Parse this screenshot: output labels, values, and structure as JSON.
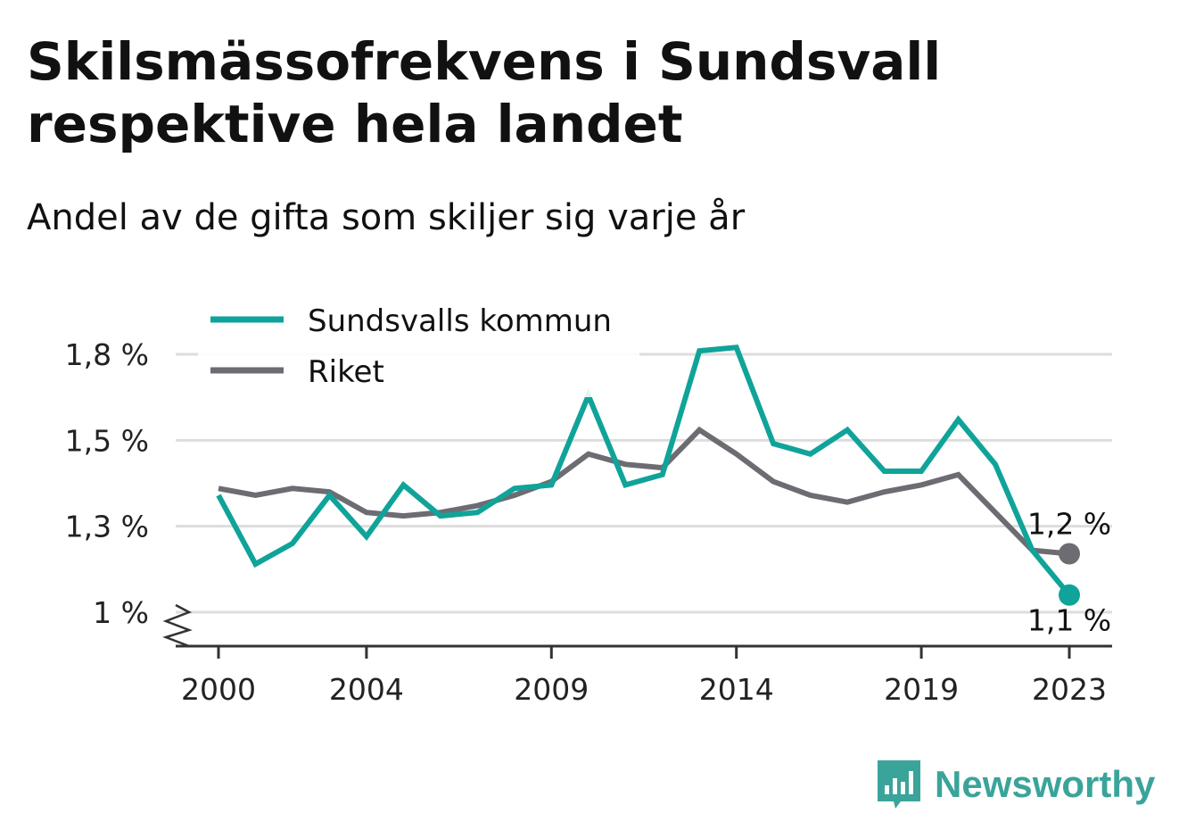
{
  "title": "Skilsmässofrekvens i Sundsvall respektive hela landet",
  "subtitle": "Andel av de gifta som skiljer sig varje år",
  "brand": {
    "name": "Newsworthy",
    "logo_icon": "newsworthy-bar-chart-icon"
  },
  "colors": {
    "sundsvall": "#0fa39a",
    "riket": "#6e6c73",
    "grid": "#dddddd",
    "axis": "#333333"
  },
  "chart_data": {
    "type": "line",
    "title": "Skilsmässofrekvens i Sundsvall respektive hela landet",
    "subtitle": "Andel av de gifta som skiljer sig varje år",
    "xlabel": "",
    "ylabel": "",
    "x": [
      2000,
      2001,
      2002,
      2003,
      2004,
      2005,
      2006,
      2007,
      2008,
      2009,
      2010,
      2011,
      2012,
      2013,
      2014,
      2015,
      2016,
      2017,
      2018,
      2019,
      2020,
      2021,
      2022,
      2023
    ],
    "x_ticks": [
      2000,
      2004,
      2009,
      2014,
      2019,
      2023
    ],
    "x_tick_labels": [
      "2000",
      "2004",
      "2009",
      "2014",
      "2019",
      "2023"
    ],
    "y_ticks": [
      1.0,
      1.25,
      1.5,
      1.75
    ],
    "y_tick_labels": [
      "1 %",
      "1,3 %",
      "1,5 %",
      "1,8 %"
    ],
    "ylim": [
      1.0,
      1.75
    ],
    "y_axis_break": true,
    "grid": true,
    "legend_position": "top-left",
    "series": [
      {
        "name": "Sundsvalls kommun",
        "color": "#0fa39a",
        "values": [
          1.34,
          1.14,
          1.2,
          1.34,
          1.22,
          1.37,
          1.28,
          1.29,
          1.36,
          1.37,
          1.63,
          1.37,
          1.4,
          1.76,
          1.77,
          1.49,
          1.46,
          1.53,
          1.41,
          1.41,
          1.56,
          1.43,
          1.18,
          1.05
        ],
        "end_label": "1,1 %"
      },
      {
        "name": "Riket",
        "color": "#6e6c73",
        "values": [
          1.36,
          1.34,
          1.36,
          1.35,
          1.29,
          1.28,
          1.29,
          1.31,
          1.34,
          1.38,
          1.46,
          1.43,
          1.42,
          1.53,
          1.46,
          1.38,
          1.34,
          1.32,
          1.35,
          1.37,
          1.4,
          1.29,
          1.18,
          1.17
        ],
        "end_label": "1,2 %"
      }
    ]
  }
}
